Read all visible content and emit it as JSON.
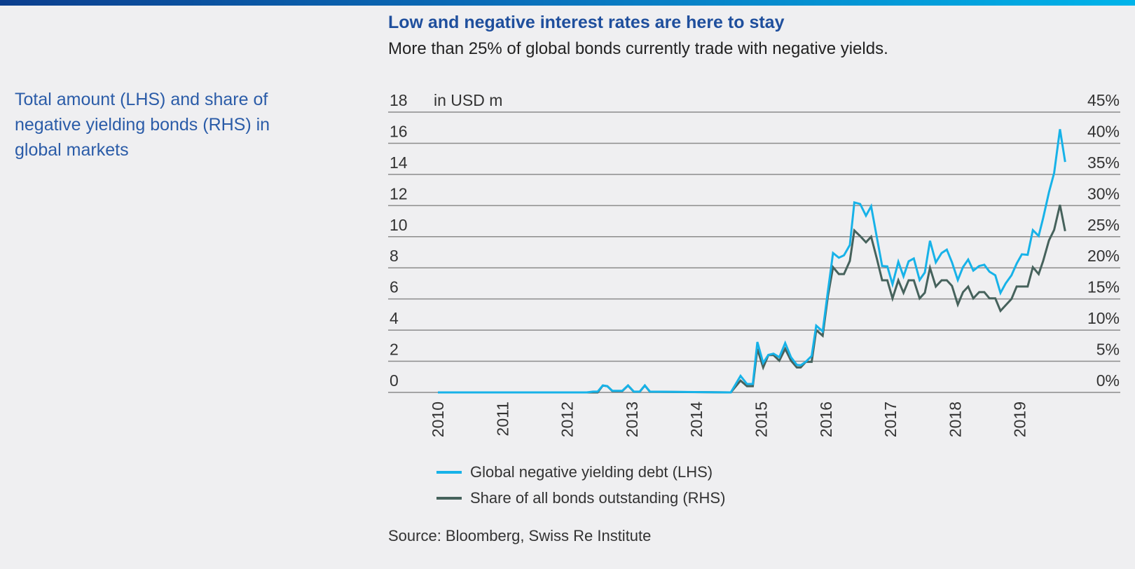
{
  "header": {
    "title": "Low and negative interest rates are here to stay",
    "subtitle": "More than 25% of global bonds currently trade with negative yields."
  },
  "sidebar": {
    "description": "Total amount (LHS) and share of negative yielding bonds (RHS) in global markets"
  },
  "source": "Source: Bloomberg, Swiss Re Institute",
  "colors": {
    "background": "#efeff1",
    "accent": "#1f4f9d",
    "series_lhs": "#17b2e8",
    "series_rhs": "#46625c",
    "gridline": "#8c8c8c"
  },
  "chart_data": {
    "type": "line",
    "unit_label": "in USD m",
    "xlim": [
      2009.6,
      2020.4
    ],
    "x_ticks": [
      "2010",
      "2011",
      "2012",
      "2013",
      "2014",
      "2015",
      "2016",
      "2017",
      "2018",
      "2019"
    ],
    "y_left": {
      "range": [
        0,
        18
      ],
      "ticks": [
        "0",
        "2",
        "4",
        "6",
        "8",
        "10",
        "12",
        "14",
        "16",
        "18"
      ]
    },
    "y_right": {
      "range": [
        0,
        45
      ],
      "ticks": [
        "0%",
        "5%",
        "10%",
        "15%",
        "20%",
        "25%",
        "30%",
        "35%",
        "40%",
        "45%"
      ]
    },
    "grid": true,
    "legend_position": "bottom",
    "x": [
      2010.0,
      2012.3,
      2012.4,
      2012.47,
      2012.55,
      2012.62,
      2012.7,
      2012.85,
      2012.94,
      2013.03,
      2013.12,
      2013.2,
      2013.28,
      2014.53,
      2014.68,
      2014.78,
      2014.87,
      2014.94,
      2015.03,
      2015.11,
      2015.19,
      2015.28,
      2015.37,
      2015.46,
      2015.55,
      2015.61,
      2015.69,
      2015.78,
      2015.85,
      2015.95,
      2016.03,
      2016.11,
      2016.2,
      2016.28,
      2016.37,
      2016.44,
      2016.53,
      2016.62,
      2016.7,
      2016.79,
      2016.87,
      2016.95,
      2017.03,
      2017.12,
      2017.2,
      2017.28,
      2017.36,
      2017.45,
      2017.53,
      2017.61,
      2017.7,
      2017.79,
      2017.87,
      2017.95,
      2018.04,
      2018.12,
      2018.2,
      2018.28,
      2018.37,
      2018.45,
      2018.53,
      2018.62,
      2018.7,
      2018.78,
      2018.87,
      2018.95,
      2019.03,
      2019.12,
      2019.2,
      2019.29,
      2019.36,
      2019.45,
      2019.53,
      2019.62,
      2019.7
    ],
    "series": [
      {
        "name": "Global negative yielding debt (LHS)",
        "axis": "left",
        "color": "#17b2e8",
        "values": [
          0,
          0,
          0.05,
          0.05,
          0.45,
          0.4,
          0.1,
          0.1,
          0.45,
          0.05,
          0.05,
          0.45,
          0.05,
          0,
          1.06,
          0.54,
          0.54,
          3.24,
          1.89,
          2.41,
          2.49,
          2.26,
          3.17,
          2.26,
          1.77,
          1.74,
          1.97,
          2.34,
          4.29,
          3.92,
          6.47,
          8.95,
          8.65,
          8.8,
          9.47,
          12.2,
          12.1,
          11.35,
          11.95,
          9.92,
          8.12,
          8.09,
          6.95,
          8.39,
          7.45,
          8.42,
          8.6,
          7.22,
          7.7,
          9.74,
          8.35,
          8.95,
          9.17,
          8.35,
          7.22,
          8.05,
          8.53,
          7.82,
          8.12,
          8.2,
          7.75,
          7.52,
          6.39,
          7.0,
          7.52,
          8.27,
          8.87,
          8.84,
          10.42,
          10.05,
          11.2,
          12.85,
          14.1,
          16.9,
          14.8
        ]
      },
      {
        "name": "Share of all bonds outstanding (RHS)",
        "axis": "right",
        "color": "#46625c",
        "values": [
          0,
          0,
          0,
          0,
          1.1,
          1.0,
          0.2,
          0.2,
          1.1,
          0.1,
          0.1,
          1.1,
          0.1,
          0,
          1.9,
          1.0,
          1.0,
          7.0,
          4.0,
          6.0,
          6.0,
          5.1,
          7.0,
          5.1,
          4.0,
          4.0,
          4.9,
          4.9,
          10.0,
          9.1,
          15.4,
          20.1,
          19.0,
          19.0,
          21.1,
          26.0,
          25.1,
          24.1,
          25.0,
          21.4,
          18.0,
          18.0,
          15.1,
          18.0,
          16.0,
          18.0,
          18.0,
          15.1,
          16.0,
          20.0,
          17.0,
          18.0,
          18.0,
          17.1,
          14.1,
          16.1,
          17.0,
          15.1,
          16.1,
          16.1,
          15.1,
          15.1,
          13.1,
          14.0,
          15.0,
          17.0,
          17.0,
          17.0,
          20.1,
          19.0,
          21.1,
          24.4,
          26.1,
          30.1,
          25.9
        ]
      }
    ]
  }
}
